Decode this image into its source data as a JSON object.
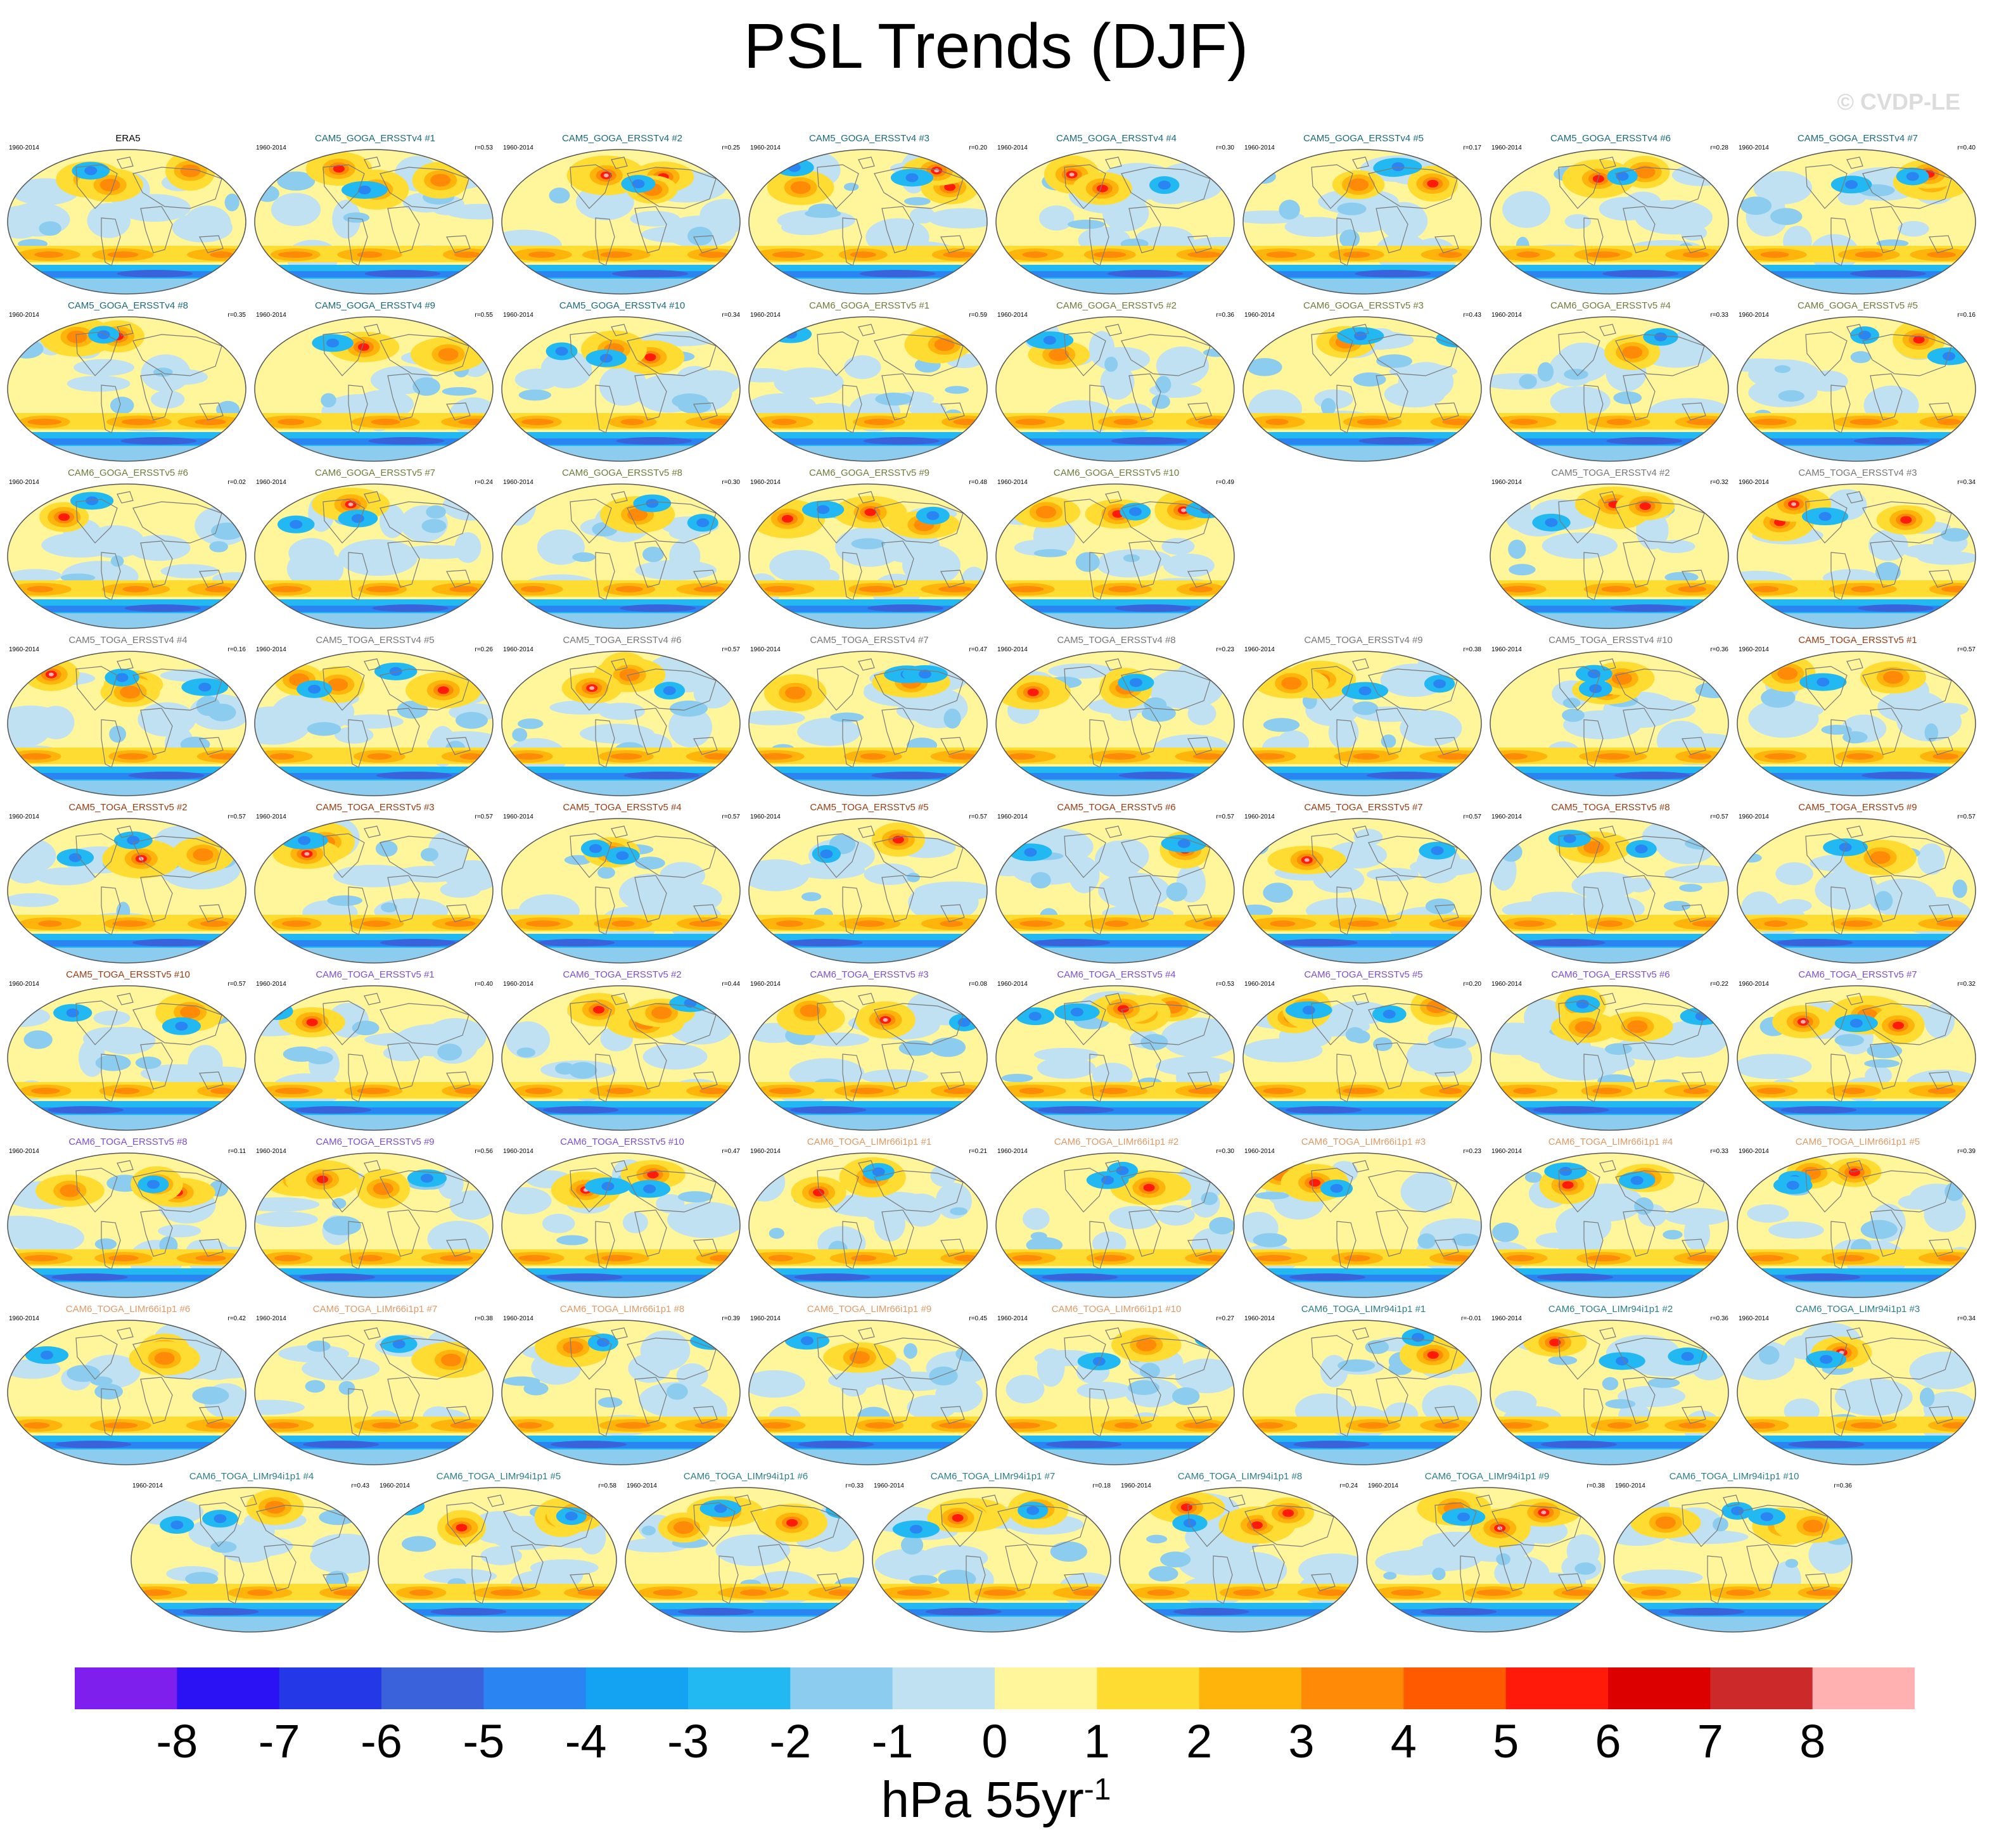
{
  "figure": {
    "title": "PSL Trends (DJF)",
    "watermark": "© CVDP-LE",
    "period": "1960-2014"
  },
  "palette": {
    "levels": [
      -8,
      -7,
      -6,
      -5,
      -4,
      -3,
      -2,
      -1,
      0,
      1,
      2,
      3,
      4,
      5,
      6,
      7,
      8
    ],
    "colors": [
      "#7f1fee",
      "#2b12f5",
      "#2438e8",
      "#3a63db",
      "#2a84f2",
      "#14a2f2",
      "#22b9f2",
      "#8ccdef",
      "#bfe1f2",
      "#fff59a",
      "#ffdc32",
      "#ffb40c",
      "#ff8a08",
      "#ff5a00",
      "#ff1a0a",
      "#dc0000",
      "#cc2a2a",
      "#ffb0b0"
    ],
    "title_colors": {
      "obs": "#000000",
      "CAM5_GOGA_ERSSTv4": "#1a6b7c",
      "CAM6_GOGA_ERSSTv5": "#6e7d3a",
      "CAM5_TOGA_ERSSTv4": "#777777",
      "CAM5_TOGA_ERSSTv5": "#9a3c12",
      "CAM6_TOGA_ERSSTv5": "#7b4fd6",
      "CAM6_TOGA_LIMr66i1p1": "#e09a66",
      "CAM6_TOGA_LIMr94i1p1": "#2a7f8a"
    }
  },
  "chart_data": {
    "type": "heatmap",
    "description_units": "hPa 55yr-1",
    "colorbar": {
      "tick_labels": [
        "-8",
        "-7",
        "-6",
        "-5",
        "-4",
        "-3",
        "-2",
        "-1",
        "0",
        "1",
        "2",
        "3",
        "4",
        "5",
        "6",
        "7",
        "8"
      ],
      "units_base": "hPa 55yr",
      "units_exponent": "-1"
    },
    "panels": [
      {
        "title": "ERA5",
        "group": "obs",
        "r": ""
      },
      {
        "title": "CAM5_GOGA_ERSSTv4 #1",
        "group": "CAM5_GOGA_ERSSTv4",
        "r": "r=0.53"
      },
      {
        "title": "CAM5_GOGA_ERSSTv4 #2",
        "group": "CAM5_GOGA_ERSSTv4",
        "r": "r=0.25"
      },
      {
        "title": "CAM5_GOGA_ERSSTv4 #3",
        "group": "CAM5_GOGA_ERSSTv4",
        "r": "r=0.20"
      },
      {
        "title": "CAM5_GOGA_ERSSTv4 #4",
        "group": "CAM5_GOGA_ERSSTv4",
        "r": "r=0.30"
      },
      {
        "title": "CAM5_GOGA_ERSSTv4 #5",
        "group": "CAM5_GOGA_ERSSTv4",
        "r": "r=0.17"
      },
      {
        "title": "CAM5_GOGA_ERSSTv4 #6",
        "group": "CAM5_GOGA_ERSSTv4",
        "r": "r=0.28"
      },
      {
        "title": "CAM5_GOGA_ERSSTv4 #7",
        "group": "CAM5_GOGA_ERSSTv4",
        "r": "r=0.40"
      },
      {
        "title": "CAM5_GOGA_ERSSTv4 #8",
        "group": "CAM5_GOGA_ERSSTv4",
        "r": "r=0.35"
      },
      {
        "title": "CAM5_GOGA_ERSSTv4 #9",
        "group": "CAM5_GOGA_ERSSTv4",
        "r": "r=0.55"
      },
      {
        "title": "CAM5_GOGA_ERSSTv4 #10",
        "group": "CAM5_GOGA_ERSSTv4",
        "r": "r=0.34"
      },
      {
        "title": "CAM6_GOGA_ERSSTv5 #1",
        "group": "CAM6_GOGA_ERSSTv5",
        "r": "r=0.59"
      },
      {
        "title": "CAM6_GOGA_ERSSTv5 #2",
        "group": "CAM6_GOGA_ERSSTv5",
        "r": "r=0.36"
      },
      {
        "title": "CAM6_GOGA_ERSSTv5 #3",
        "group": "CAM6_GOGA_ERSSTv5",
        "r": "r=0.43"
      },
      {
        "title": "CAM6_GOGA_ERSSTv5 #4",
        "group": "CAM6_GOGA_ERSSTv5",
        "r": "r=0.33"
      },
      {
        "title": "CAM6_GOGA_ERSSTv5 #5",
        "group": "CAM6_GOGA_ERSSTv5",
        "r": "r=0.16"
      },
      {
        "title": "CAM6_GOGA_ERSSTv5 #6",
        "group": "CAM6_GOGA_ERSSTv5",
        "r": "r=0.02"
      },
      {
        "title": "CAM6_GOGA_ERSSTv5 #7",
        "group": "CAM6_GOGA_ERSSTv5",
        "r": "r=0.24"
      },
      {
        "title": "CAM6_GOGA_ERSSTv5 #8",
        "group": "CAM6_GOGA_ERSSTv5",
        "r": "r=0.30"
      },
      {
        "title": "CAM6_GOGA_ERSSTv5 #9",
        "group": "CAM6_GOGA_ERSSTv5",
        "r": "r=0.48"
      },
      {
        "title": "CAM6_GOGA_ERSSTv5 #10",
        "group": "CAM6_GOGA_ERSSTv5",
        "r": "r=0.49"
      },
      null,
      {
        "title": "CAM5_TOGA_ERSSTv4 #2",
        "group": "CAM5_TOGA_ERSSTv4",
        "r": "r=0.32"
      },
      {
        "title": "CAM5_TOGA_ERSSTv4 #3",
        "group": "CAM5_TOGA_ERSSTv4",
        "r": "r=0.34"
      },
      {
        "title": "CAM5_TOGA_ERSSTv4 #4",
        "group": "CAM5_TOGA_ERSSTv4",
        "r": "r=0.16"
      },
      {
        "title": "CAM5_TOGA_ERSSTv4 #5",
        "group": "CAM5_TOGA_ERSSTv4",
        "r": "r=0.26"
      },
      {
        "title": "CAM5_TOGA_ERSSTv4 #6",
        "group": "CAM5_TOGA_ERSSTv4",
        "r": "r=0.57"
      },
      {
        "title": "CAM5_TOGA_ERSSTv4 #7",
        "group": "CAM5_TOGA_ERSSTv4",
        "r": "r=0.47"
      },
      {
        "title": "CAM5_TOGA_ERSSTv4 #8",
        "group": "CAM5_TOGA_ERSSTv4",
        "r": "r=0.23"
      },
      {
        "title": "CAM5_TOGA_ERSSTv4 #9",
        "group": "CAM5_TOGA_ERSSTv4",
        "r": "r=0.38"
      },
      {
        "title": "CAM5_TOGA_ERSSTv4 #10",
        "group": "CAM5_TOGA_ERSSTv4",
        "r": "r=0.36"
      },
      {
        "title": "CAM5_TOGA_ERSSTv5 #1",
        "group": "CAM5_TOGA_ERSSTv5",
        "r": "r=0.57"
      },
      {
        "title": "CAM5_TOGA_ERSSTv5 #2",
        "group": "CAM5_TOGA_ERSSTv5",
        "r": "r=0.57"
      },
      {
        "title": "CAM5_TOGA_ERSSTv5 #3",
        "group": "CAM5_TOGA_ERSSTv5",
        "r": "r=0.57"
      },
      {
        "title": "CAM5_TOGA_ERSSTv5 #4",
        "group": "CAM5_TOGA_ERSSTv5",
        "r": "r=0.57"
      },
      {
        "title": "CAM5_TOGA_ERSSTv5 #5",
        "group": "CAM5_TOGA_ERSSTv5",
        "r": "r=0.57"
      },
      {
        "title": "CAM5_TOGA_ERSSTv5 #6",
        "group": "CAM5_TOGA_ERSSTv5",
        "r": "r=0.57"
      },
      {
        "title": "CAM5_TOGA_ERSSTv5 #7",
        "group": "CAM5_TOGA_ERSSTv5",
        "r": "r=0.57"
      },
      {
        "title": "CAM5_TOGA_ERSSTv5 #8",
        "group": "CAM5_TOGA_ERSSTv5",
        "r": "r=0.57"
      },
      {
        "title": "CAM5_TOGA_ERSSTv5 #9",
        "group": "CAM5_TOGA_ERSSTv5",
        "r": "r=0.57"
      },
      {
        "title": "CAM5_TOGA_ERSSTv5 #10",
        "group": "CAM5_TOGA_ERSSTv5",
        "r": "r=0.57"
      },
      {
        "title": "CAM6_TOGA_ERSSTv5 #1",
        "group": "CAM6_TOGA_ERSSTv5",
        "r": "r=0.40"
      },
      {
        "title": "CAM6_TOGA_ERSSTv5 #2",
        "group": "CAM6_TOGA_ERSSTv5",
        "r": "r=0.44"
      },
      {
        "title": "CAM6_TOGA_ERSSTv5 #3",
        "group": "CAM6_TOGA_ERSSTv5",
        "r": "r=0.08"
      },
      {
        "title": "CAM6_TOGA_ERSSTv5 #4",
        "group": "CAM6_TOGA_ERSSTv5",
        "r": "r=0.53"
      },
      {
        "title": "CAM6_TOGA_ERSSTv5 #5",
        "group": "CAM6_TOGA_ERSSTv5",
        "r": "r=0.20"
      },
      {
        "title": "CAM6_TOGA_ERSSTv5 #6",
        "group": "CAM6_TOGA_ERSSTv5",
        "r": "r=0.22"
      },
      {
        "title": "CAM6_TOGA_ERSSTv5 #7",
        "group": "CAM6_TOGA_ERSSTv5",
        "r": "r=0.32"
      },
      {
        "title": "CAM6_TOGA_ERSSTv5 #8",
        "group": "CAM6_TOGA_ERSSTv5",
        "r": "r=0.11"
      },
      {
        "title": "CAM6_TOGA_ERSSTv5 #9",
        "group": "CAM6_TOGA_ERSSTv5",
        "r": "r=0.56"
      },
      {
        "title": "CAM6_TOGA_ERSSTv5 #10",
        "group": "CAM6_TOGA_ERSSTv5",
        "r": "r=0.47"
      },
      {
        "title": "CAM6_TOGA_LIMr66i1p1 #1",
        "group": "CAM6_TOGA_LIMr66i1p1",
        "r": "r=0.21"
      },
      {
        "title": "CAM6_TOGA_LIMr66i1p1 #2",
        "group": "CAM6_TOGA_LIMr66i1p1",
        "r": "r=0.30"
      },
      {
        "title": "CAM6_TOGA_LIMr66i1p1 #3",
        "group": "CAM6_TOGA_LIMr66i1p1",
        "r": "r=0.23"
      },
      {
        "title": "CAM6_TOGA_LIMr66i1p1 #4",
        "group": "CAM6_TOGA_LIMr66i1p1",
        "r": "r=0.33"
      },
      {
        "title": "CAM6_TOGA_LIMr66i1p1 #5",
        "group": "CAM6_TOGA_LIMr66i1p1",
        "r": "r=0.39"
      },
      {
        "title": "CAM6_TOGA_LIMr66i1p1 #6",
        "group": "CAM6_TOGA_LIMr66i1p1",
        "r": "r=0.42"
      },
      {
        "title": "CAM6_TOGA_LIMr66i1p1 #7",
        "group": "CAM6_TOGA_LIMr66i1p1",
        "r": "r=0.38"
      },
      {
        "title": "CAM6_TOGA_LIMr66i1p1 #8",
        "group": "CAM6_TOGA_LIMr66i1p1",
        "r": "r=0.39"
      },
      {
        "title": "CAM6_TOGA_LIMr66i1p1 #9",
        "group": "CAM6_TOGA_LIMr66i1p1",
        "r": "r=0.45"
      },
      {
        "title": "CAM6_TOGA_LIMr66i1p1 #10",
        "group": "CAM6_TOGA_LIMr66i1p1",
        "r": "r=0.27"
      },
      {
        "title": "CAM6_TOGA_LIMr94i1p1 #1",
        "group": "CAM6_TOGA_LIMr94i1p1",
        "r": "r=-0.01"
      },
      {
        "title": "CAM6_TOGA_LIMr94i1p1 #2",
        "group": "CAM6_TOGA_LIMr94i1p1",
        "r": "r=0.36"
      },
      {
        "title": "CAM6_TOGA_LIMr94i1p1 #3",
        "group": "CAM6_TOGA_LIMr94i1p1",
        "r": "r=0.34"
      },
      {
        "title": "CAM6_TOGA_LIMr94i1p1 #4",
        "group": "CAM6_TOGA_LIMr94i1p1",
        "r": "r=0.43"
      },
      {
        "title": "CAM6_TOGA_LIMr94i1p1 #5",
        "group": "CAM6_TOGA_LIMr94i1p1",
        "r": "r=0.58"
      },
      {
        "title": "CAM6_TOGA_LIMr94i1p1 #6",
        "group": "CAM6_TOGA_LIMr94i1p1",
        "r": "r=0.33"
      },
      {
        "title": "CAM6_TOGA_LIMr94i1p1 #7",
        "group": "CAM6_TOGA_LIMr94i1p1",
        "r": "r=0.18"
      },
      {
        "title": "CAM6_TOGA_LIMr94i1p1 #8",
        "group": "CAM6_TOGA_LIMr94i1p1",
        "r": "r=0.24"
      },
      {
        "title": "CAM6_TOGA_LIMr94i1p1 #9",
        "group": "CAM6_TOGA_LIMr94i1p1",
        "r": "r=0.38"
      },
      {
        "title": "CAM6_TOGA_LIMr94i1p1 #10",
        "group": "CAM6_TOGA_LIMr94i1p1",
        "r": "r=0.36"
      }
    ]
  }
}
